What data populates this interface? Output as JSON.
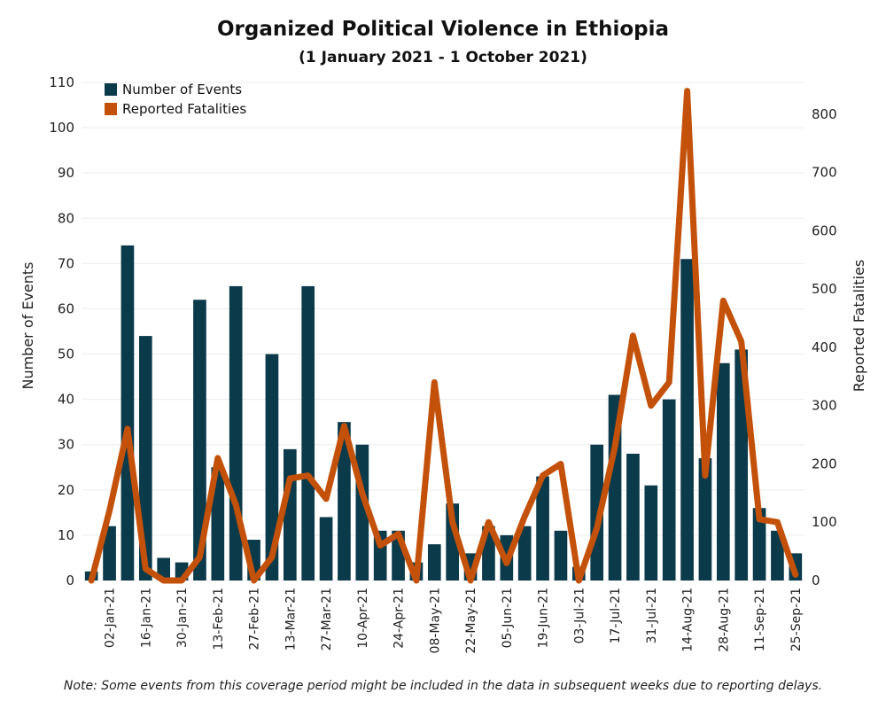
{
  "chart_data": {
    "type": "bar+line",
    "title": "Organized Political Violence in Ethiopia",
    "subtitle": "(1 January 2021 - 1 October 2021)",
    "note": "Note: Some events from this coverage period might be included in the data in subsequent weeks due to reporting delays.",
    "ylabel": "Number of Events",
    "y2label": "Reported Fatalities",
    "ylim": [
      0,
      110
    ],
    "y2lim": [
      0,
      850
    ],
    "yticks": [
      0,
      10,
      20,
      30,
      40,
      50,
      60,
      70,
      80,
      90,
      100,
      110
    ],
    "y2ticks": [
      0,
      100,
      200,
      300,
      400,
      500,
      600,
      700,
      800
    ],
    "legend": "top-left",
    "grid": true,
    "colors": {
      "events": "#0b3a4b",
      "fatalities": "#c4510a"
    },
    "categories": [
      "",
      "02-Jan-21",
      "",
      "16-Jan-21",
      "",
      "30-Jan-21",
      "",
      "13-Feb-21",
      "",
      "27-Feb-21",
      "",
      "13-Mar-21",
      "",
      "27-Mar-21",
      "",
      "10-Apr-21",
      "",
      "24-Apr-21",
      "",
      "08-May-21",
      "",
      "22-May-21",
      "",
      "05-Jun-21",
      "",
      "19-Jun-21",
      "",
      "03-Jul-21",
      "",
      "17-Jul-21",
      "",
      "31-Jul-21",
      "",
      "14-Aug-21",
      "",
      "28-Aug-21",
      "",
      "11-Sep-21",
      "",
      "25-Sep-21"
    ],
    "series": [
      {
        "name": "Number of Events",
        "type": "bar",
        "axis": "left",
        "values": [
          2,
          12,
          74,
          54,
          5,
          4,
          62,
          25,
          65,
          9,
          50,
          29,
          65,
          14,
          35,
          30,
          11,
          11,
          4,
          8,
          17,
          6,
          12,
          10,
          12,
          23,
          11,
          3,
          30,
          41,
          28,
          21,
          40,
          71,
          27,
          48,
          51,
          16,
          11,
          6
        ]
      },
      {
        "name": "Reported Fatalities",
        "type": "line",
        "axis": "right",
        "values": [
          0,
          120,
          260,
          20,
          0,
          0,
          40,
          210,
          130,
          0,
          40,
          175,
          180,
          140,
          265,
          150,
          60,
          80,
          0,
          340,
          100,
          0,
          100,
          30,
          110,
          180,
          200,
          0,
          90,
          230,
          420,
          300,
          340,
          840,
          180,
          480,
          410,
          105,
          100,
          10
        ]
      }
    ]
  }
}
